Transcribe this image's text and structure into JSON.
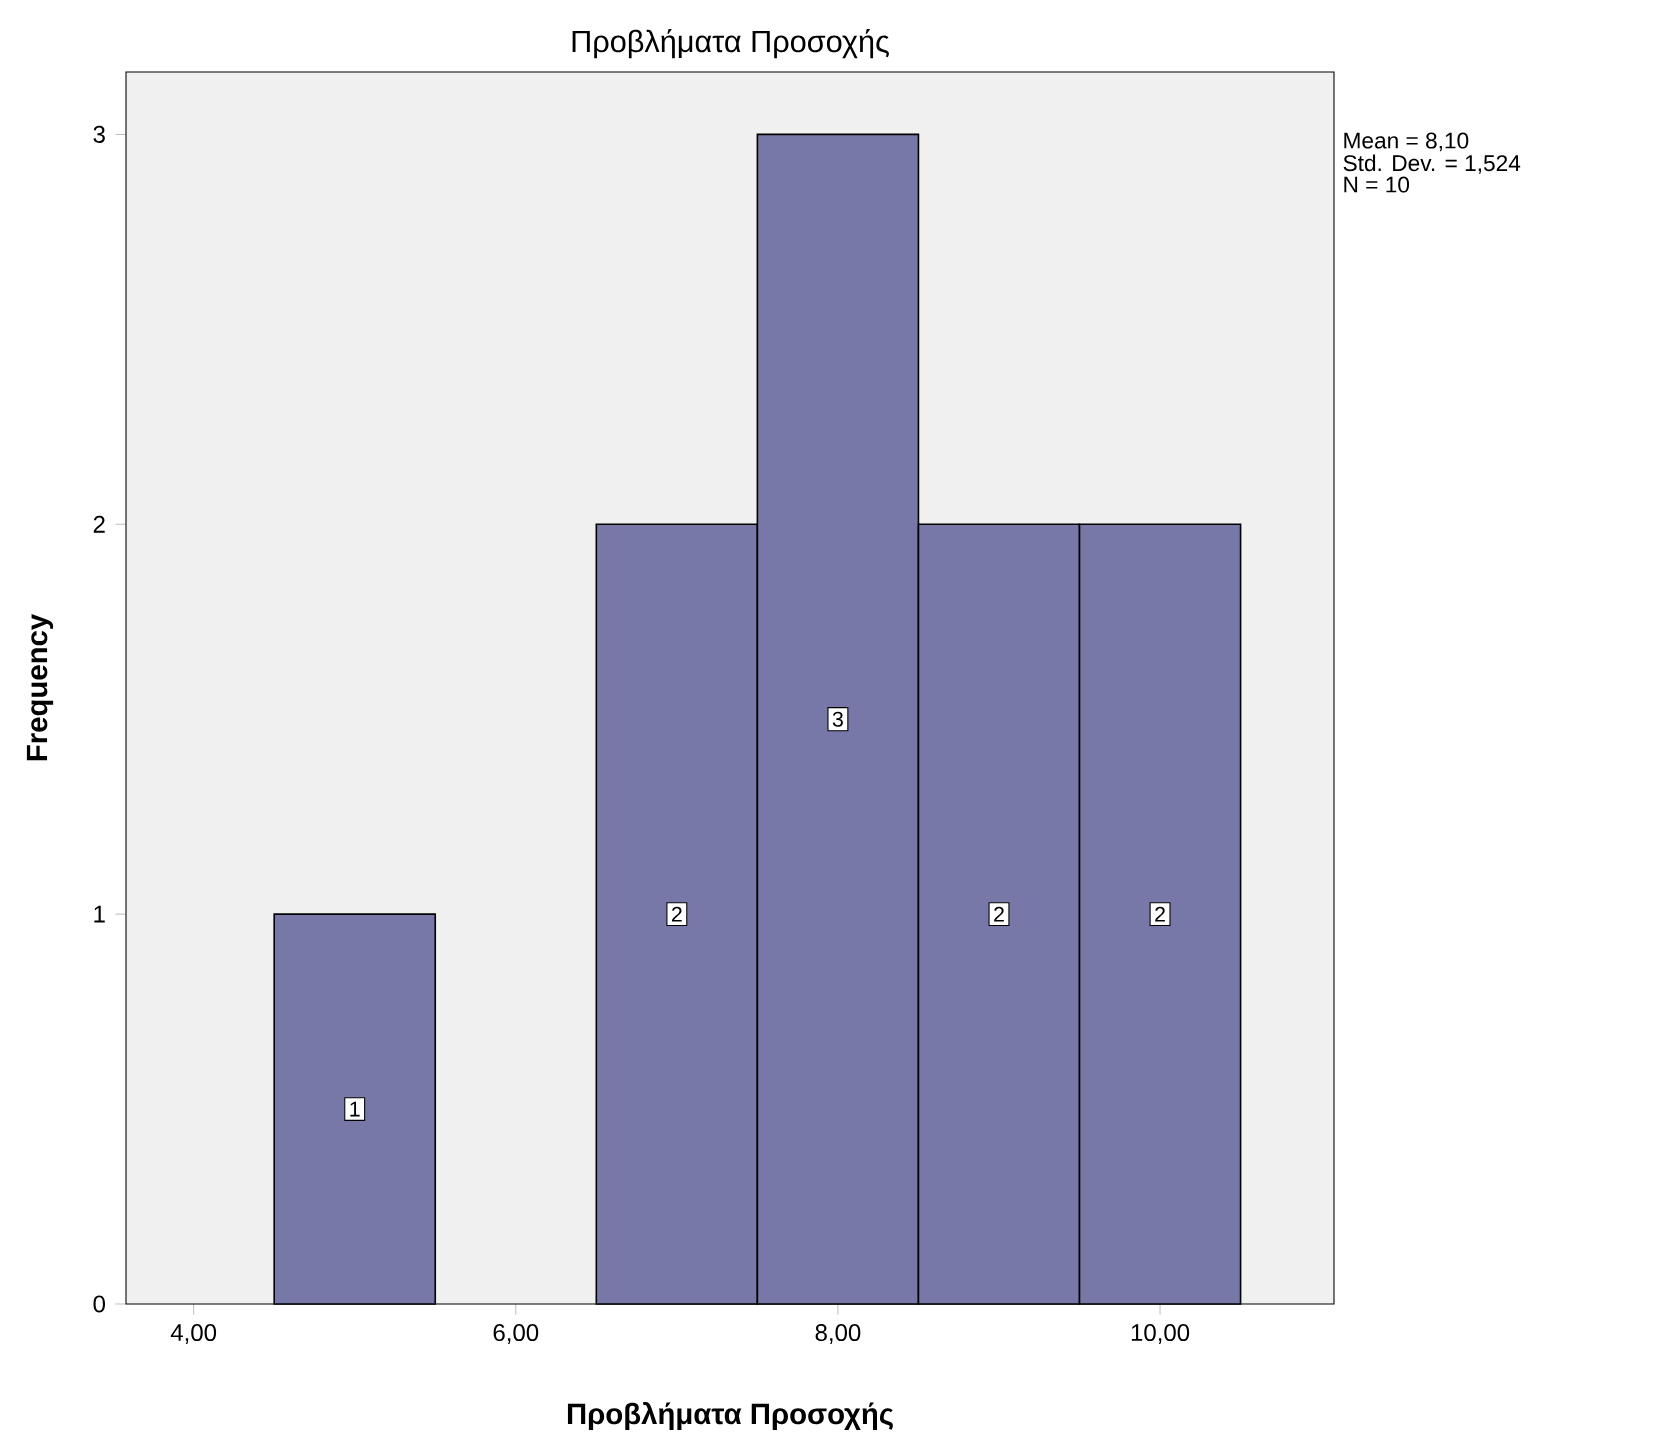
{
  "chart_data": {
    "type": "histogram",
    "title": "Προβλήματα Προσοχής",
    "xlabel": "Προβλήματα Προσοχής",
    "ylabel": "Frequency",
    "bins": [
      4.5,
      5.5,
      6.5,
      7.5,
      8.5,
      9.5,
      10.5
    ],
    "values": [
      1,
      0,
      2,
      3,
      2,
      2
    ],
    "value_labels": [
      "1",
      null,
      "2",
      "3",
      "2",
      "2"
    ],
    "color": "#7878a8",
    "xlim": [
      3.58,
      11.08
    ],
    "ylim": [
      0,
      3.16
    ],
    "xticks": [
      {
        "value": 4,
        "label": "4,00"
      },
      {
        "value": 6,
        "label": "6,00"
      },
      {
        "value": 8,
        "label": "8,00"
      },
      {
        "value": 10,
        "label": "10,00"
      }
    ],
    "yticks": [
      0,
      1,
      2,
      3
    ],
    "annotations": [
      "Mean = 8,10",
      "Std. Dev. = 1,524",
      "N = 10"
    ]
  }
}
